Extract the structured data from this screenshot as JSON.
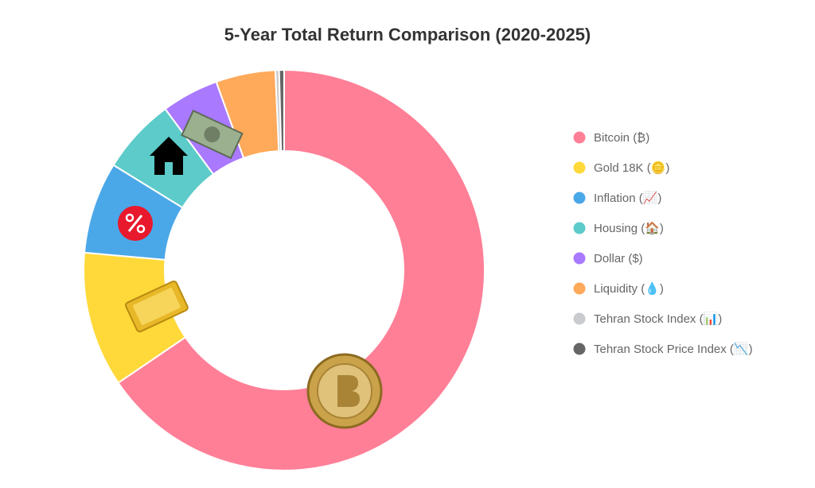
{
  "chart_data": {
    "type": "doughnut",
    "title": "5-Year Total Return Comparison (2020-2025)",
    "categories": [
      "Bitcoin (₿)",
      "Gold 18K (🪙)",
      "Inflation (📈)",
      "Housing (🏠)",
      "Dollar ($)",
      "Liquidity (💧)",
      "Tehran Stock Index (📊)",
      "Tehran Stock Price Index (📉)"
    ],
    "values": [
      65.5,
      10.9,
      7.4,
      6.1,
      4.6,
      4.8,
      0.3,
      0.4
    ],
    "colors": [
      "#ff7f97",
      "#ffd93a",
      "#4ba8e8",
      "#5ccbc9",
      "#a979ff",
      "#ffa95a",
      "#c9cbcf",
      "#666666"
    ],
    "legend": "right"
  }
}
